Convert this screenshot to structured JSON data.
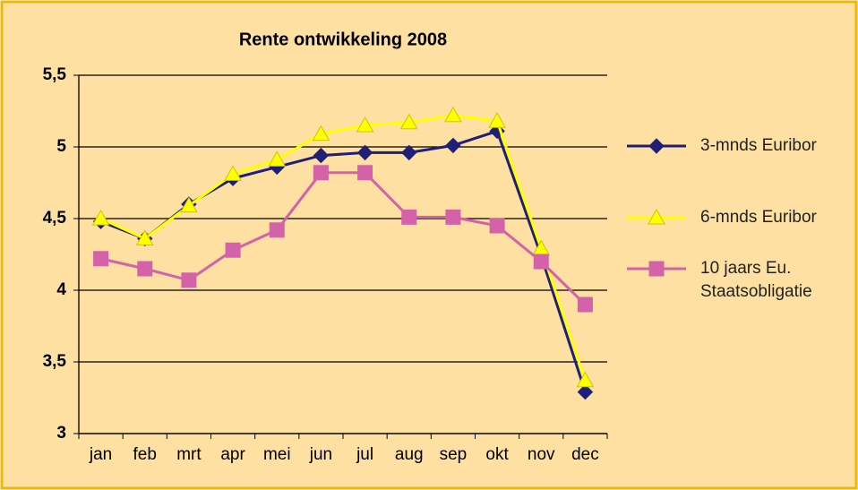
{
  "chart_data": {
    "type": "line",
    "title": "Rente ontwikkeling 2008",
    "categories": [
      "jan",
      "feb",
      "mrt",
      "apr",
      "mei",
      "jun",
      "jul",
      "aug",
      "sep",
      "okt",
      "nov",
      "dec"
    ],
    "series": [
      {
        "name": "3-mnds Euribor",
        "color": "#1f1f78",
        "marker": "diamond",
        "values": [
          4.48,
          4.36,
          4.6,
          4.78,
          4.86,
          4.94,
          4.96,
          4.96,
          5.01,
          5.11,
          4.24,
          3.29
        ]
      },
      {
        "name": "6-mnds Euribor",
        "color": "#ffff00",
        "marker": "triangle",
        "values": [
          4.5,
          4.36,
          4.59,
          4.81,
          4.91,
          5.09,
          5.15,
          5.17,
          5.22,
          5.18,
          4.29,
          3.37
        ]
      },
      {
        "name": "10 jaars Eu. Staatsobligatie",
        "color": "#d462a8",
        "marker": "square",
        "values": [
          4.22,
          4.15,
          4.07,
          4.28,
          4.42,
          4.82,
          4.82,
          4.51,
          4.51,
          4.45,
          4.2,
          3.9
        ]
      }
    ],
    "ylim": [
      3,
      5.5
    ],
    "yticks": [
      3,
      {
        "value": 3.5,
        "label": "3,5"
      },
      4,
      {
        "value": 4.5,
        "label": "4,5"
      },
      5,
      {
        "value": 5.5,
        "label": "5,5"
      }
    ],
    "grid": true,
    "legend": "right"
  }
}
